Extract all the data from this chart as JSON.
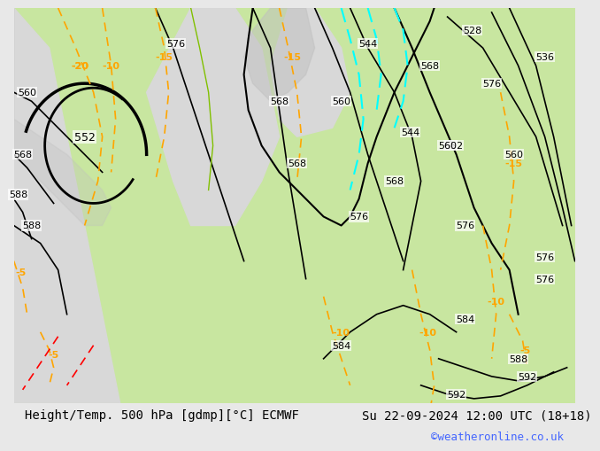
{
  "title_left": "Height/Temp. 500 hPa [gdmp][°C] ECMWF",
  "title_right": "Su 22-09-2024 12:00 UTC (18+18)",
  "credit": "©weatheronline.co.uk",
  "bg_color": "#d0d0d0",
  "map_bg_light": "#c8e6a0",
  "map_bg_dark": "#a8c880",
  "label_color_black": "#000000",
  "label_color_orange": "#ffa500",
  "label_color_red": "#ff0000",
  "label_color_cyan": "#00ccff",
  "label_color_green": "#80c000",
  "bottom_bar_color": "#e8e8e8",
  "font_size_title": 10,
  "font_size_credit": 9,
  "credit_color": "#4466ff"
}
